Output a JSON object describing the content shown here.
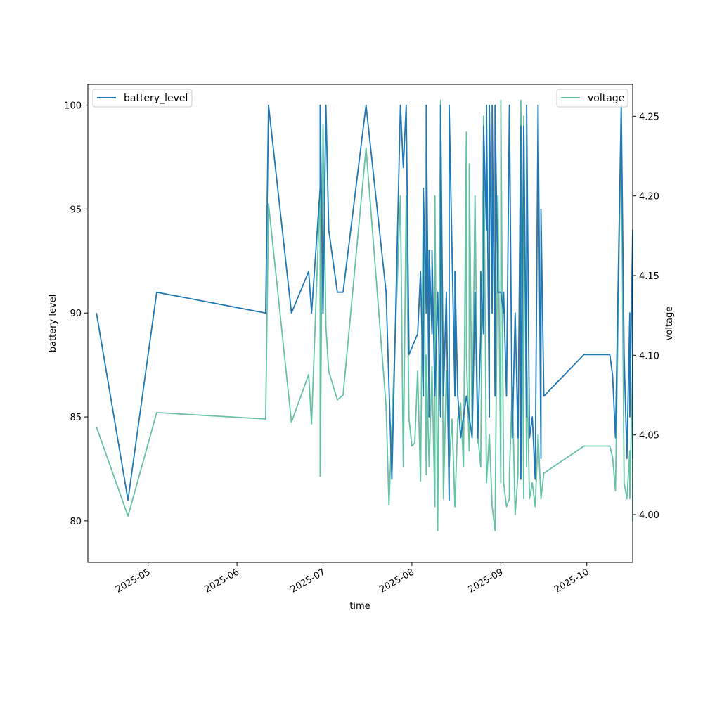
{
  "chart_data": {
    "type": "line",
    "title": "",
    "xlabel": "time",
    "ylabel_left": "battery level",
    "ylabel_right": "voltage",
    "x_tick_labels": [
      "2025-05",
      "2025-06",
      "2025-07",
      "2025-08",
      "2025-09",
      "2025-10"
    ],
    "y_left_tick_labels": [
      "80",
      "85",
      "90",
      "95",
      "100"
    ],
    "y_right_tick_labels": [
      "4.00",
      "4.05",
      "4.10",
      "4.15",
      "4.20",
      "4.25"
    ],
    "xlim": [
      "2025-04-10",
      "2025-10-17"
    ],
    "ylim_left": [
      78.0,
      101.0
    ],
    "ylim_right": [
      3.97,
      4.27
    ],
    "grid": false,
    "series": [
      {
        "name": "battery_level",
        "axis": "left",
        "color": "#1f77b4",
        "legend_position": "upper-left",
        "points": [
          [
            "2025-04-13",
            90
          ],
          [
            "2025-04-24",
            81
          ],
          [
            "2025-05-04",
            91
          ],
          [
            "2025-06-11",
            90
          ],
          [
            "2025-06-12",
            100
          ],
          [
            "2025-06-20",
            90
          ],
          [
            "2025-06-26",
            92
          ],
          [
            "2025-06-27",
            90
          ],
          [
            "2025-06-30",
            96
          ],
          [
            "2025-06-30",
            100
          ],
          [
            "2025-07-01",
            90
          ],
          [
            "2025-07-02",
            100
          ],
          [
            "2025-07-03",
            94
          ],
          [
            "2025-07-06",
            91
          ],
          [
            "2025-07-08",
            91
          ],
          [
            "2025-07-16",
            100
          ],
          [
            "2025-07-23",
            91
          ],
          [
            "2025-07-25",
            82
          ],
          [
            "2025-07-28",
            100
          ],
          [
            "2025-07-29",
            97
          ],
          [
            "2025-07-30",
            100
          ],
          [
            "2025-07-31",
            88
          ],
          [
            "2025-08-03",
            89
          ],
          [
            "2025-08-04",
            92
          ],
          [
            "2025-08-05",
            86
          ],
          [
            "2025-08-05",
            96
          ],
          [
            "2025-08-06",
            90
          ],
          [
            "2025-08-06",
            100
          ],
          [
            "2025-08-07",
            85
          ],
          [
            "2025-08-07",
            93
          ],
          [
            "2025-08-08",
            89
          ],
          [
            "2025-08-08",
            93
          ],
          [
            "2025-08-09",
            86
          ],
          [
            "2025-08-10",
            91
          ],
          [
            "2025-08-11",
            85
          ],
          [
            "2025-08-11",
            100
          ],
          [
            "2025-08-12",
            86
          ],
          [
            "2025-08-13",
            91
          ],
          [
            "2025-08-14",
            81
          ],
          [
            "2025-08-14",
            100
          ],
          [
            "2025-08-16",
            86
          ],
          [
            "2025-08-16",
            92
          ],
          [
            "2025-08-17",
            86
          ],
          [
            "2025-08-18",
            84
          ],
          [
            "2025-08-20",
            86
          ],
          [
            "2025-08-22",
            84
          ],
          [
            "2025-08-23",
            91
          ],
          [
            "2025-08-24",
            84
          ],
          [
            "2025-08-25",
            89
          ],
          [
            "2025-08-25",
            92
          ],
          [
            "2025-08-26",
            89
          ],
          [
            "2025-08-26",
            99
          ],
          [
            "2025-08-27",
            94
          ],
          [
            "2025-08-27",
            100
          ],
          [
            "2025-08-28",
            85
          ],
          [
            "2025-08-28",
            100
          ],
          [
            "2025-08-29",
            90
          ],
          [
            "2025-08-29",
            100
          ],
          [
            "2025-08-30",
            86
          ],
          [
            "2025-08-30",
            100
          ],
          [
            "2025-08-31",
            91
          ],
          [
            "2025-09-01",
            91
          ],
          [
            "2025-09-02",
            90
          ],
          [
            "2025-09-02",
            91
          ],
          [
            "2025-09-03",
            86
          ],
          [
            "2025-09-04",
            100
          ],
          [
            "2025-09-05",
            84
          ],
          [
            "2025-09-06",
            90
          ],
          [
            "2025-09-07",
            84
          ],
          [
            "2025-09-08",
            99
          ],
          [
            "2025-09-08",
            82
          ],
          [
            "2025-09-09",
            99
          ],
          [
            "2025-09-10",
            85
          ],
          [
            "2025-09-10",
            100
          ],
          [
            "2025-09-11",
            84
          ],
          [
            "2025-09-12",
            85
          ],
          [
            "2025-09-13",
            82
          ],
          [
            "2025-09-14",
            100
          ],
          [
            "2025-09-15",
            83
          ],
          [
            "2025-09-15",
            95
          ],
          [
            "2025-09-16",
            86
          ],
          [
            "2025-09-30",
            88
          ],
          [
            "2025-10-09",
            88
          ],
          [
            "2025-10-10",
            87
          ],
          [
            "2025-10-11",
            84
          ],
          [
            "2025-10-13",
            100
          ],
          [
            "2025-10-14",
            88
          ],
          [
            "2025-10-15",
            83
          ],
          [
            "2025-10-16",
            90
          ],
          [
            "2025-10-16",
            85
          ],
          [
            "2025-10-17",
            94
          ],
          [
            "2025-10-17",
            83
          ],
          [
            "2025-10-17",
            90
          ],
          [
            "2025-10-17",
            86
          ],
          [
            "2025-10-17",
            91
          ],
          [
            "2025-10-17",
            87
          ],
          [
            "2025-10-17",
            90
          ]
        ]
      },
      {
        "name": "voltage",
        "axis": "right",
        "color": "#66c2a5",
        "legend_position": "upper-right",
        "points": [
          [
            "2025-04-13",
            4.055
          ],
          [
            "2025-04-24",
            3.999
          ],
          [
            "2025-05-04",
            4.064
          ],
          [
            "2025-06-11",
            4.06
          ],
          [
            "2025-06-12",
            4.195
          ],
          [
            "2025-06-20",
            4.058
          ],
          [
            "2025-06-26",
            4.088
          ],
          [
            "2025-06-27",
            4.057
          ],
          [
            "2025-06-30",
            4.205
          ],
          [
            "2025-06-30",
            4.024
          ],
          [
            "2025-07-01",
            4.245
          ],
          [
            "2025-07-02",
            4.118
          ],
          [
            "2025-07-03",
            4.09
          ],
          [
            "2025-07-06",
            4.072
          ],
          [
            "2025-07-08",
            4.075
          ],
          [
            "2025-07-16",
            4.23
          ],
          [
            "2025-07-23",
            4.068
          ],
          [
            "2025-07-24",
            4.006
          ],
          [
            "2025-07-28",
            4.2
          ],
          [
            "2025-07-29",
            4.03
          ],
          [
            "2025-07-30",
            4.2
          ],
          [
            "2025-07-31",
            4.06
          ],
          [
            "2025-08-01",
            4.043
          ],
          [
            "2025-08-02",
            4.045
          ],
          [
            "2025-08-03",
            4.09
          ],
          [
            "2025-08-04",
            4.021
          ],
          [
            "2025-08-05",
            4.2
          ],
          [
            "2025-08-06",
            4.025
          ],
          [
            "2025-08-06",
            4.1
          ],
          [
            "2025-08-07",
            4.03
          ],
          [
            "2025-08-08",
            4.093
          ],
          [
            "2025-08-09",
            4.005
          ],
          [
            "2025-08-09",
            4.2
          ],
          [
            "2025-08-10",
            3.99
          ],
          [
            "2025-08-11",
            4.26
          ],
          [
            "2025-08-12",
            4.01
          ],
          [
            "2025-08-13",
            4.09
          ],
          [
            "2025-08-14",
            4.03
          ],
          [
            "2025-08-15",
            4.06
          ],
          [
            "2025-08-16",
            4.005
          ],
          [
            "2025-08-17",
            4.06
          ],
          [
            "2025-08-18",
            4.07
          ],
          [
            "2025-08-19",
            4.03
          ],
          [
            "2025-08-20",
            4.24
          ],
          [
            "2025-08-20",
            4.1
          ],
          [
            "2025-08-21",
            4.04
          ],
          [
            "2025-08-21",
            4.22
          ],
          [
            "2025-08-22",
            4.05
          ],
          [
            "2025-08-23",
            4.2
          ],
          [
            "2025-08-24",
            4.045
          ],
          [
            "2025-08-24",
            4.05
          ],
          [
            "2025-08-25",
            4.03
          ],
          [
            "2025-08-26",
            4.25
          ],
          [
            "2025-08-27",
            4.02
          ],
          [
            "2025-08-28",
            4.05
          ],
          [
            "2025-08-29",
            4.005
          ],
          [
            "2025-08-30",
            3.99
          ],
          [
            "2025-08-31",
            4.2
          ],
          [
            "2025-09-01",
            4.02
          ],
          [
            "2025-09-01",
            4.26
          ],
          [
            "2025-09-02",
            4.02
          ],
          [
            "2025-09-03",
            4.005
          ],
          [
            "2025-09-04",
            4.01
          ],
          [
            "2025-09-04",
            4.025
          ],
          [
            "2025-09-05",
            4.08
          ],
          [
            "2025-09-06",
            4.0
          ],
          [
            "2025-09-07",
            4.025
          ],
          [
            "2025-09-08",
            4.26
          ],
          [
            "2025-09-09",
            4.01
          ],
          [
            "2025-09-09",
            4.25
          ],
          [
            "2025-09-10",
            4.03
          ],
          [
            "2025-09-10",
            4.1
          ],
          [
            "2025-09-11",
            4.01
          ],
          [
            "2025-09-12",
            4.02
          ],
          [
            "2025-09-13",
            4.005
          ],
          [
            "2025-09-14",
            4.05
          ],
          [
            "2025-09-15",
            4.01
          ],
          [
            "2025-09-16",
            4.026
          ],
          [
            "2025-09-30",
            4.043
          ],
          [
            "2025-10-09",
            4.043
          ],
          [
            "2025-10-10",
            4.036
          ],
          [
            "2025-10-11",
            4.015
          ],
          [
            "2025-10-13",
            4.25
          ],
          [
            "2025-10-14",
            4.02
          ],
          [
            "2025-10-15",
            4.01
          ],
          [
            "2025-10-16",
            4.04
          ],
          [
            "2025-10-16",
            4.01
          ],
          [
            "2025-10-17",
            4.095
          ],
          [
            "2025-10-17",
            3.996
          ],
          [
            "2025-10-17",
            4.05
          ],
          [
            "2025-10-17",
            4.035
          ],
          [
            "2025-10-17",
            4.063
          ],
          [
            "2025-10-17",
            4.036
          ],
          [
            "2025-10-17",
            4.05
          ]
        ]
      }
    ]
  }
}
